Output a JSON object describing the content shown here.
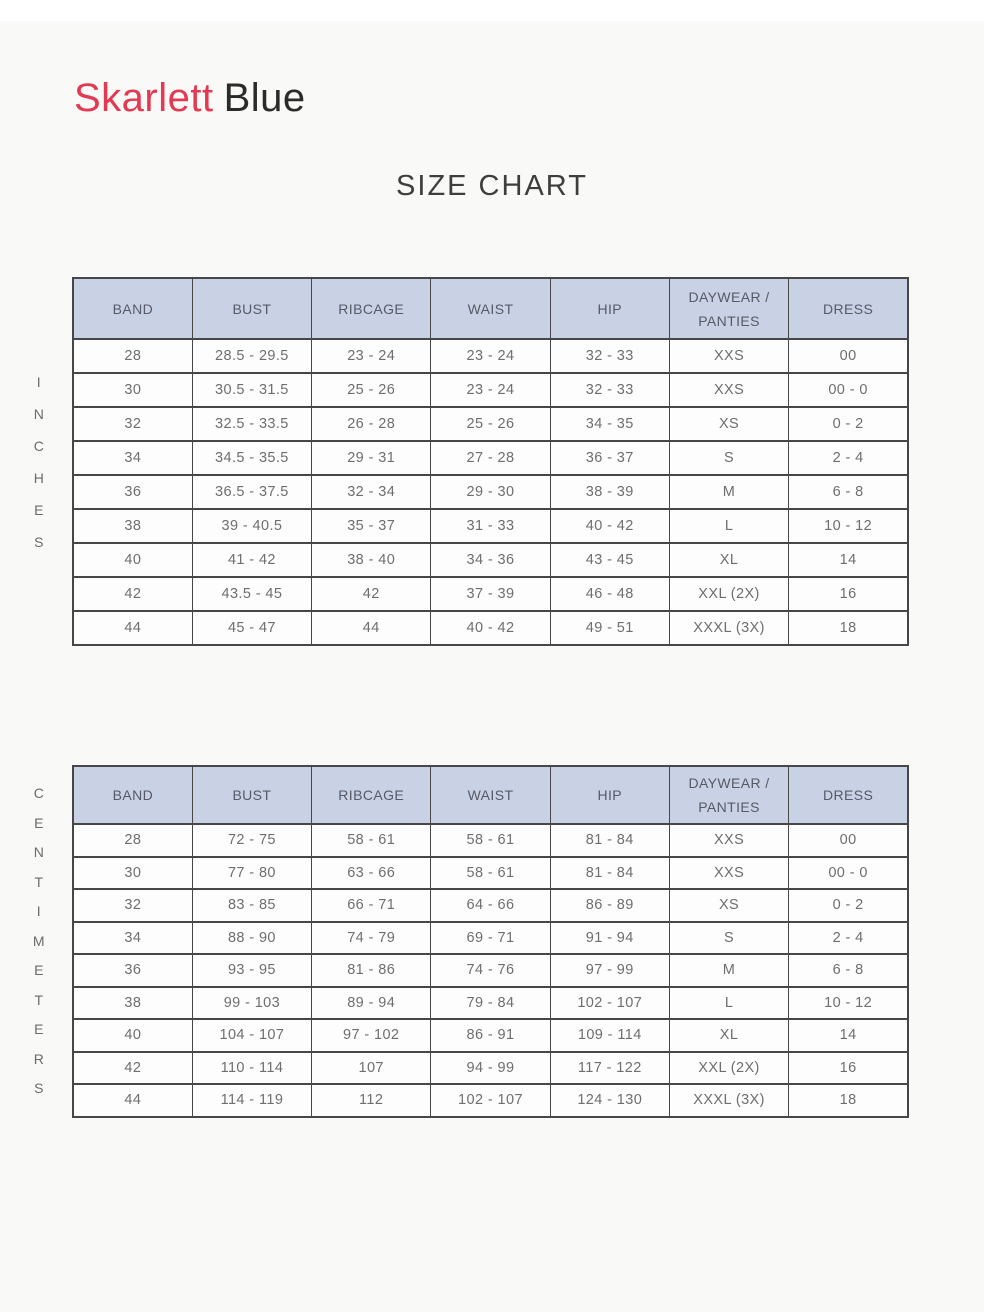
{
  "brand": {
    "name_primary": "Skarlett",
    "name_secondary": "Blue",
    "primary_color": "#e23a52",
    "secondary_color": "#2b2b2b"
  },
  "title": "SIZE CHART",
  "theme": {
    "page_background": "#f9f9f8",
    "header_fill": "#c9d1e4",
    "border_color": "#474747",
    "cell_text_color": "#6e6e6e"
  },
  "tables": [
    {
      "unit": "INCHES",
      "headers": [
        "BAND",
        "BUST",
        "RIBCAGE",
        "WAIST",
        "HIP",
        "DAYWEAR /\nPANTIES",
        "DRESS"
      ],
      "rows": [
        [
          "28",
          "28.5 - 29.5",
          "23 - 24",
          "23 - 24",
          "32 - 33",
          "XXS",
          "00"
        ],
        [
          "30",
          "30.5 - 31.5",
          "25 - 26",
          "23 - 24",
          "32 - 33",
          "XXS",
          "00 - 0"
        ],
        [
          "32",
          "32.5 - 33.5",
          "26 - 28",
          "25 - 26",
          "34 - 35",
          "XS",
          "0 - 2"
        ],
        [
          "34",
          "34.5 - 35.5",
          "29 - 31",
          "27 - 28",
          "36 - 37",
          "S",
          "2 - 4"
        ],
        [
          "36",
          "36.5 - 37.5",
          "32 - 34",
          "29 - 30",
          "38 - 39",
          "M",
          "6 - 8"
        ],
        [
          "38",
          "39 - 40.5",
          "35 - 37",
          "31 - 33",
          "40 - 42",
          "L",
          "10 - 12"
        ],
        [
          "40",
          "41 - 42",
          "38 - 40",
          "34 - 36",
          "43 - 45",
          "XL",
          "14"
        ],
        [
          "42",
          "43.5 - 45",
          "42",
          "37 - 39",
          "46 - 48",
          "XXL (2X)",
          "16"
        ],
        [
          "44",
          "45 - 47",
          "44",
          "40 - 42",
          "49 - 51",
          "XXXL (3X)",
          "18"
        ]
      ]
    },
    {
      "unit": "CENTIMETERS",
      "headers": [
        "BAND",
        "BUST",
        "RIBCAGE",
        "WAIST",
        "HIP",
        "DAYWEAR /\nPANTIES",
        "DRESS"
      ],
      "rows": [
        [
          "28",
          "72 - 75",
          "58 - 61",
          "58 - 61",
          "81 - 84",
          "XXS",
          "00"
        ],
        [
          "30",
          "77 - 80",
          "63 - 66",
          "58 - 61",
          "81 - 84",
          "XXS",
          "00 - 0"
        ],
        [
          "32",
          "83 - 85",
          "66 - 71",
          "64 - 66",
          "86 - 89",
          "XS",
          "0 - 2"
        ],
        [
          "34",
          "88 - 90",
          "74 - 79",
          "69 - 71",
          "91 - 94",
          "S",
          "2 - 4"
        ],
        [
          "36",
          "93 - 95",
          "81 - 86",
          "74 - 76",
          "97 - 99",
          "M",
          "6 - 8"
        ],
        [
          "38",
          "99 - 103",
          "89 - 94",
          "79 - 84",
          "102 - 107",
          "L",
          "10 - 12"
        ],
        [
          "40",
          "104 - 107",
          "97 - 102",
          "86 - 91",
          "109 - 114",
          "XL",
          "14"
        ],
        [
          "42",
          "110 - 114",
          "107",
          "94 - 99",
          "117 - 122",
          "XXL (2X)",
          "16"
        ],
        [
          "44",
          "114 - 119",
          "112",
          "102 - 107",
          "124 - 130",
          "XXXL (3X)",
          "18"
        ]
      ]
    }
  ]
}
